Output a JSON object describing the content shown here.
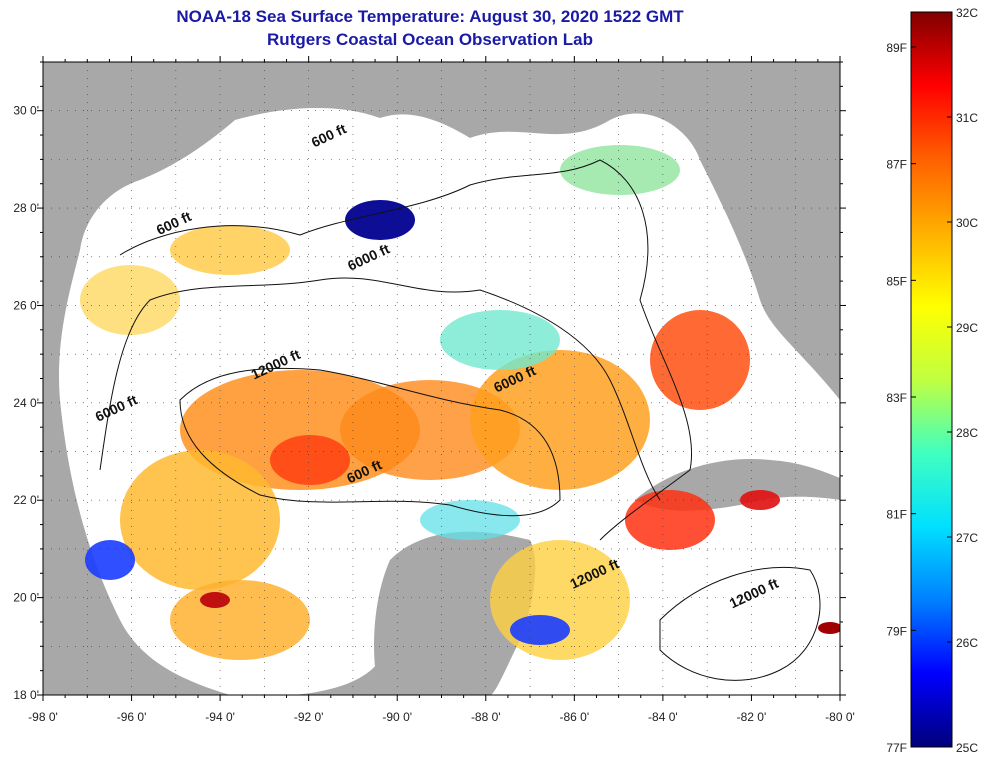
{
  "title": {
    "line1": "NOAA-18 Sea Surface Temperature:  August 30, 2020 1522 GMT",
    "line2": "Rutgers Coastal Ocean Observation Lab"
  },
  "map": {
    "lon_range": [
      -98,
      -80
    ],
    "lat_range": [
      18,
      31
    ],
    "lon_ticks": [
      "-98 0'",
      "-96 0'",
      "-94 0'",
      "-92 0'",
      "-90 0'",
      "-88 0'",
      "-86 0'",
      "-84 0'",
      "-82 0'",
      "-80 0'"
    ],
    "lat_ticks": [
      "18 0'",
      "20 0'",
      "22 0'",
      "24 0'",
      "26 0'",
      "28 0'",
      "30 0'"
    ],
    "land_color": "#a8a8a8",
    "cloud_color": "#ffffff",
    "contour_labels": [
      {
        "text": "600 ft",
        "lon": -91.5,
        "lat": 29.4
      },
      {
        "text": "600 ft",
        "lon": -95.0,
        "lat": 27.6
      },
      {
        "text": "6000 ft",
        "lon": -90.6,
        "lat": 26.9
      },
      {
        "text": "12000 ft",
        "lon": -92.7,
        "lat": 24.7
      },
      {
        "text": "6000 ft",
        "lon": -96.3,
        "lat": 23.8
      },
      {
        "text": "6000 ft",
        "lon": -87.3,
        "lat": 24.4
      },
      {
        "text": "600 ft",
        "lon": -90.7,
        "lat": 22.5
      },
      {
        "text": "12000 ft",
        "lon": -85.5,
        "lat": 20.4
      },
      {
        "text": "12000 ft",
        "lon": -81.9,
        "lat": 20.0
      }
    ]
  },
  "colorbar": {
    "celsius_labels": [
      "32C",
      "31C",
      "30C",
      "29C",
      "28C",
      "27C",
      "26C",
      "25C"
    ],
    "fahrenheit_labels": [
      "89F",
      "87F",
      "85F",
      "83F",
      "81F",
      "79F",
      "77F"
    ],
    "celsius_range": [
      25,
      32
    ],
    "fahrenheit_values": [
      89,
      87,
      85,
      83,
      81,
      79,
      77
    ],
    "colors": [
      "#00007a",
      "#0000ff",
      "#0080ff",
      "#00e0ff",
      "#40ffc0",
      "#c0ff40",
      "#ffff00",
      "#ffb000",
      "#ff6000",
      "#ff0000",
      "#800000"
    ]
  }
}
